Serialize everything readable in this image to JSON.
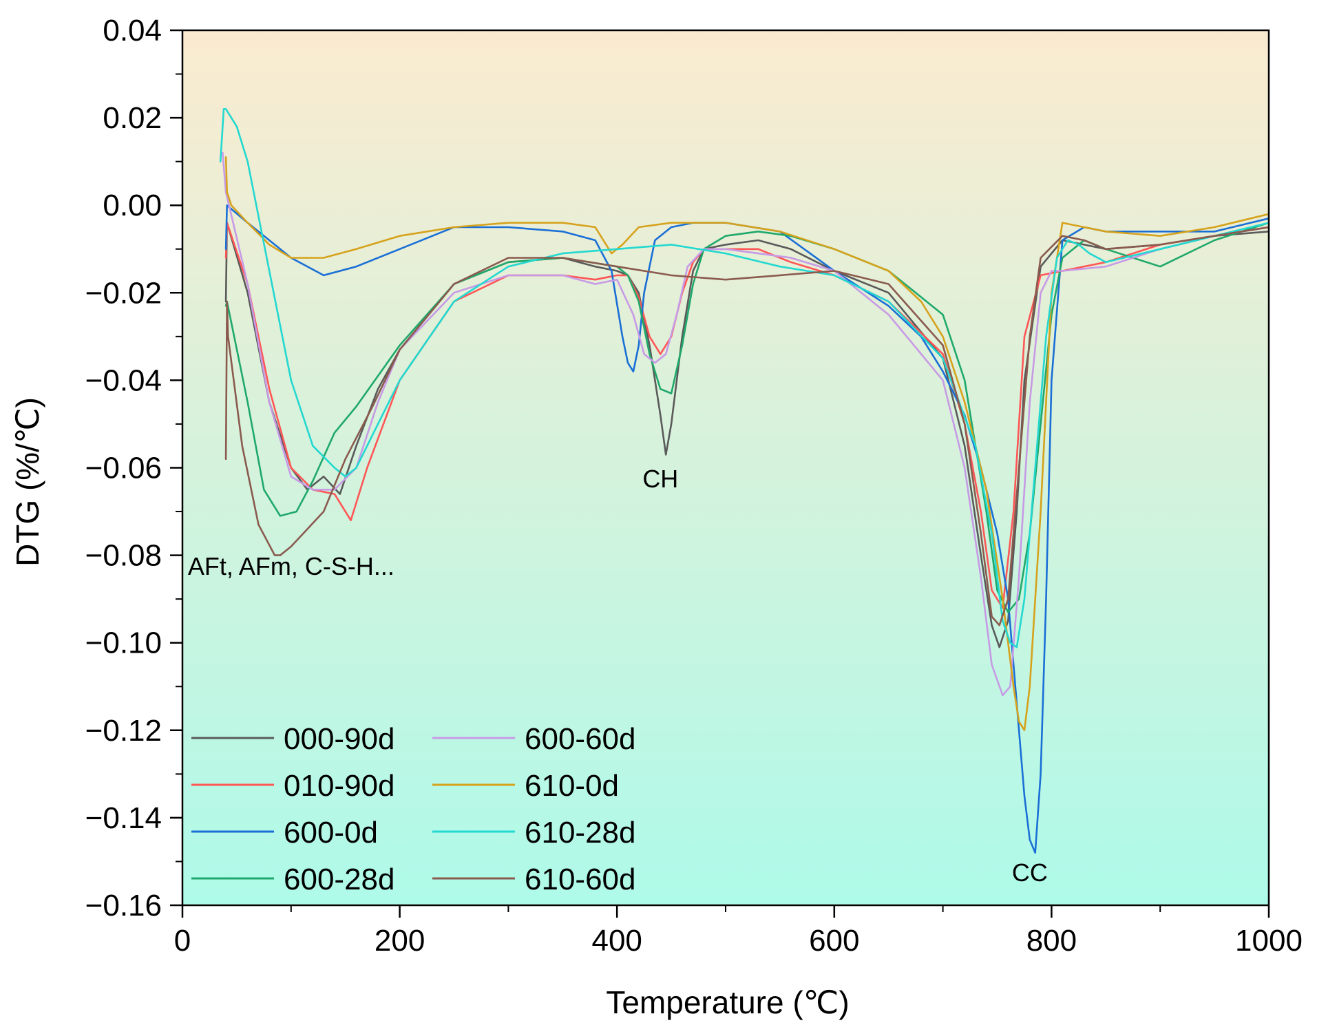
{
  "chart_data": {
    "type": "line",
    "title": "",
    "xlabel": "Temperature (℃)",
    "ylabel": "DTG (%/℃)",
    "xlim": [
      0,
      1000
    ],
    "ylim": [
      -0.16,
      0.04
    ],
    "x_ticks": [
      0,
      200,
      400,
      600,
      800,
      1000
    ],
    "x_tick_labels": [
      "0",
      "200",
      "400",
      "600",
      "800",
      "1000"
    ],
    "y_ticks": [
      0.04,
      0.02,
      0.0,
      -0.02,
      -0.04,
      -0.06,
      -0.08,
      -0.1,
      -0.12,
      -0.14,
      -0.16
    ],
    "y_tick_labels": [
      "0.04",
      "0.02",
      "0.00",
      "−0.02",
      "−0.04",
      "−0.06",
      "−0.08",
      "−0.10",
      "−0.12",
      "−0.14",
      "−0.16"
    ],
    "background_gradient": [
      "#fbebd0",
      "#aefae9"
    ],
    "grid": false,
    "legend_position": "bottom-left",
    "annotations": [
      {
        "text": "AFt, AFm, C-S-H...",
        "x": 5,
        "y": -0.0845
      },
      {
        "text": "CH",
        "x": 440,
        "y": -0.0645
      },
      {
        "text": "CC",
        "x": 780,
        "y": -0.1545
      }
    ],
    "series": [
      {
        "name": "000-90d",
        "color": "#5a5a5a",
        "x": [
          40,
          41,
          60,
          80,
          100,
          115,
          130,
          145,
          160,
          180,
          200,
          250,
          300,
          350,
          380,
          400,
          410,
          420,
          430,
          440,
          445,
          450,
          460,
          470,
          480,
          500,
          530,
          560,
          600,
          650,
          700,
          720,
          735,
          745,
          752,
          760,
          768,
          775,
          790,
          810,
          830,
          850,
          900,
          950,
          1000
        ],
        "y": [
          -0.022,
          -0.004,
          -0.02,
          -0.045,
          -0.06,
          -0.065,
          -0.062,
          -0.066,
          -0.055,
          -0.042,
          -0.033,
          -0.018,
          -0.013,
          -0.012,
          -0.014,
          -0.015,
          -0.016,
          -0.02,
          -0.032,
          -0.048,
          -0.057,
          -0.05,
          -0.03,
          -0.015,
          -0.01,
          -0.009,
          -0.008,
          -0.01,
          -0.015,
          -0.02,
          -0.035,
          -0.055,
          -0.08,
          -0.096,
          -0.101,
          -0.095,
          -0.07,
          -0.04,
          -0.014,
          -0.008,
          -0.009,
          -0.01,
          -0.009,
          -0.007,
          -0.006
        ]
      },
      {
        "name": "010-90d",
        "color": "#ff5656",
        "x": [
          40,
          41,
          60,
          80,
          100,
          120,
          140,
          155,
          170,
          200,
          250,
          300,
          350,
          380,
          400,
          410,
          420,
          430,
          440,
          450,
          460,
          470,
          480,
          500,
          530,
          560,
          600,
          650,
          700,
          720,
          735,
          745,
          755,
          765,
          775,
          790,
          810,
          850,
          900,
          950,
          1000
        ],
        "y": [
          -0.012,
          -0.004,
          -0.018,
          -0.042,
          -0.06,
          -0.065,
          -0.066,
          -0.072,
          -0.06,
          -0.04,
          -0.022,
          -0.016,
          -0.016,
          -0.017,
          -0.016,
          -0.016,
          -0.021,
          -0.03,
          -0.034,
          -0.03,
          -0.02,
          -0.013,
          -0.01,
          -0.01,
          -0.01,
          -0.013,
          -0.016,
          -0.022,
          -0.034,
          -0.05,
          -0.07,
          -0.088,
          -0.092,
          -0.07,
          -0.03,
          -0.016,
          -0.015,
          -0.013,
          -0.009,
          -0.007,
          -0.005
        ]
      },
      {
        "name": "600-0d",
        "color": "#1a6fd6",
        "x": [
          40,
          41,
          60,
          80,
          100,
          130,
          160,
          200,
          250,
          300,
          350,
          380,
          395,
          405,
          410,
          415,
          420,
          425,
          435,
          450,
          470,
          500,
          550,
          600,
          650,
          680,
          700,
          720,
          735,
          750,
          760,
          765,
          770,
          775,
          780,
          785,
          790,
          795,
          800,
          810,
          830,
          850,
          900,
          950,
          1000
        ],
        "y": [
          -0.01,
          0.0,
          -0.004,
          -0.008,
          -0.012,
          -0.016,
          -0.014,
          -0.01,
          -0.005,
          -0.005,
          -0.006,
          -0.008,
          -0.015,
          -0.03,
          -0.036,
          -0.038,
          -0.032,
          -0.02,
          -0.008,
          -0.005,
          -0.004,
          -0.004,
          -0.006,
          -0.015,
          -0.023,
          -0.03,
          -0.038,
          -0.048,
          -0.06,
          -0.075,
          -0.09,
          -0.105,
          -0.12,
          -0.135,
          -0.145,
          -0.148,
          -0.13,
          -0.09,
          -0.04,
          -0.008,
          -0.005,
          -0.006,
          -0.006,
          -0.006,
          -0.003
        ]
      },
      {
        "name": "600-28d",
        "color": "#1fa86b",
        "x": [
          40,
          41,
          60,
          75,
          90,
          105,
          120,
          140,
          160,
          200,
          250,
          300,
          350,
          400,
          410,
          420,
          430,
          440,
          450,
          460,
          470,
          480,
          500,
          530,
          560,
          600,
          650,
          700,
          720,
          740,
          750,
          760,
          770,
          780,
          790,
          800,
          810,
          830,
          850,
          900,
          950,
          1000
        ],
        "y": [
          -0.023,
          -0.022,
          -0.045,
          -0.065,
          -0.071,
          -0.07,
          -0.063,
          -0.052,
          -0.046,
          -0.032,
          -0.018,
          -0.013,
          -0.012,
          -0.014,
          -0.016,
          -0.022,
          -0.034,
          -0.042,
          -0.043,
          -0.032,
          -0.018,
          -0.01,
          -0.007,
          -0.006,
          -0.007,
          -0.01,
          -0.015,
          -0.025,
          -0.04,
          -0.07,
          -0.088,
          -0.093,
          -0.09,
          -0.075,
          -0.05,
          -0.025,
          -0.012,
          -0.008,
          -0.01,
          -0.014,
          -0.008,
          -0.004
        ]
      },
      {
        "name": "600-60d",
        "color": "#c79ae6",
        "x": [
          37,
          40,
          60,
          80,
          100,
          120,
          140,
          160,
          180,
          200,
          250,
          300,
          350,
          380,
          400,
          415,
          425,
          435,
          445,
          455,
          465,
          480,
          500,
          530,
          560,
          600,
          650,
          700,
          720,
          735,
          745,
          755,
          762,
          770,
          780,
          790,
          800,
          810,
          850,
          900,
          950,
          1000
        ],
        "y": [
          0.012,
          0.003,
          -0.018,
          -0.045,
          -0.062,
          -0.065,
          -0.065,
          -0.06,
          -0.045,
          -0.033,
          -0.02,
          -0.016,
          -0.016,
          -0.018,
          -0.017,
          -0.025,
          -0.034,
          -0.036,
          -0.034,
          -0.025,
          -0.014,
          -0.01,
          -0.01,
          -0.011,
          -0.012,
          -0.015,
          -0.025,
          -0.04,
          -0.06,
          -0.085,
          -0.105,
          -0.112,
          -0.11,
          -0.085,
          -0.045,
          -0.02,
          -0.015,
          -0.015,
          -0.014,
          -0.01,
          -0.007,
          -0.005
        ]
      },
      {
        "name": "610-0d",
        "color": "#d6a21c",
        "x": [
          40,
          41,
          45,
          60,
          80,
          100,
          130,
          160,
          200,
          250,
          300,
          350,
          380,
          395,
          405,
          420,
          450,
          500,
          550,
          600,
          650,
          680,
          700,
          720,
          740,
          755,
          765,
          770,
          775,
          780,
          790,
          800,
          810,
          830,
          850,
          900,
          950,
          1000
        ],
        "y": [
          0.011,
          0.003,
          0.0,
          -0.004,
          -0.009,
          -0.012,
          -0.012,
          -0.01,
          -0.007,
          -0.005,
          -0.004,
          -0.004,
          -0.005,
          -0.011,
          -0.009,
          -0.005,
          -0.004,
          -0.004,
          -0.006,
          -0.01,
          -0.015,
          -0.022,
          -0.03,
          -0.045,
          -0.065,
          -0.09,
          -0.11,
          -0.118,
          -0.12,
          -0.11,
          -0.07,
          -0.02,
          -0.004,
          -0.005,
          -0.006,
          -0.007,
          -0.005,
          -0.002
        ]
      },
      {
        "name": "610-28d",
        "color": "#22d8d0",
        "x": [
          35,
          38,
          40,
          45,
          50,
          60,
          80,
          100,
          120,
          140,
          150,
          160,
          180,
          200,
          250,
          300,
          350,
          400,
          450,
          500,
          550,
          600,
          650,
          700,
          730,
          745,
          755,
          762,
          768,
          775,
          785,
          795,
          805,
          815,
          825,
          835,
          850,
          900,
          950,
          1000
        ],
        "y": [
          0.01,
          0.022,
          0.022,
          0.02,
          0.018,
          0.01,
          -0.015,
          -0.04,
          -0.055,
          -0.06,
          -0.062,
          -0.06,
          -0.05,
          -0.04,
          -0.022,
          -0.014,
          -0.011,
          -0.01,
          -0.009,
          -0.011,
          -0.014,
          -0.016,
          -0.022,
          -0.035,
          -0.055,
          -0.075,
          -0.095,
          -0.1,
          -0.101,
          -0.09,
          -0.06,
          -0.03,
          -0.012,
          -0.008,
          -0.009,
          -0.011,
          -0.013,
          -0.01,
          -0.007,
          -0.004
        ]
      },
      {
        "name": "610-60d",
        "color": "#8a5a4e",
        "x": [
          40,
          41,
          42,
          55,
          70,
          85,
          90,
          100,
          115,
          130,
          150,
          175,
          200,
          250,
          300,
          350,
          400,
          450,
          500,
          550,
          600,
          650,
          700,
          720,
          735,
          745,
          752,
          760,
          770,
          780,
          790,
          810,
          830,
          850,
          900,
          950,
          1000
        ],
        "y": [
          -0.058,
          -0.022,
          -0.03,
          -0.055,
          -0.073,
          -0.08,
          -0.08,
          -0.078,
          -0.074,
          -0.07,
          -0.058,
          -0.046,
          -0.033,
          -0.018,
          -0.012,
          -0.012,
          -0.014,
          -0.016,
          -0.017,
          -0.016,
          -0.015,
          -0.018,
          -0.032,
          -0.05,
          -0.075,
          -0.094,
          -0.096,
          -0.09,
          -0.06,
          -0.03,
          -0.012,
          -0.007,
          -0.008,
          -0.01,
          -0.009,
          -0.007,
          -0.005
        ]
      }
    ]
  }
}
